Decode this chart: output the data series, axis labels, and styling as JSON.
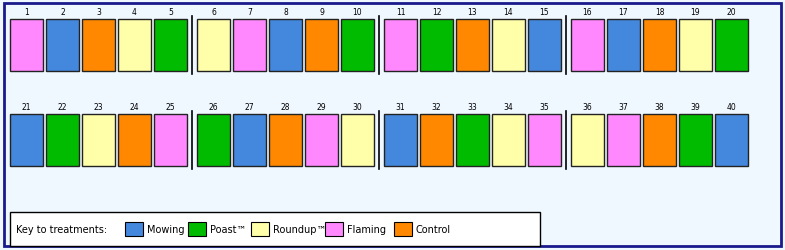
{
  "plot_colors_row1": [
    "#FF88FF",
    "#4488DD",
    "#FF8800",
    "#FFFFAA",
    "#00BB00",
    "#FFFFAA",
    "#FF88FF",
    "#4488DD",
    "#FF8800",
    "#00BB00",
    "#FF88FF",
    "#00BB00",
    "#FF8800",
    "#FFFFAA",
    "#4488DD",
    "#FF88FF",
    "#4488DD",
    "#FF8800",
    "#FFFFAA",
    "#00BB00"
  ],
  "plot_colors_row2": [
    "#4488DD",
    "#00BB00",
    "#FFFFAA",
    "#FF8800",
    "#FF88FF",
    "#00BB00",
    "#4488DD",
    "#FF8800",
    "#FF88FF",
    "#FFFFAA",
    "#4488DD",
    "#FF8800",
    "#00BB00",
    "#FFFFAA",
    "#FF88FF",
    "#FFFFAA",
    "#FF88FF",
    "#FF8800",
    "#00BB00",
    "#4488DD"
  ],
  "legend_labels": [
    "Mowing",
    "Poast™",
    "Roundup™",
    "Flaming",
    "Control"
  ],
  "legend_colors": [
    "#4488DD",
    "#00BB00",
    "#FFFFAA",
    "#FF88FF",
    "#FF8800"
  ],
  "background_color": "#F0F8FF",
  "outer_border_color": "#1A1A8C",
  "box_border_color": "#222222",
  "fig_width": 7.85,
  "fig_height": 2.51,
  "dpi": 100
}
